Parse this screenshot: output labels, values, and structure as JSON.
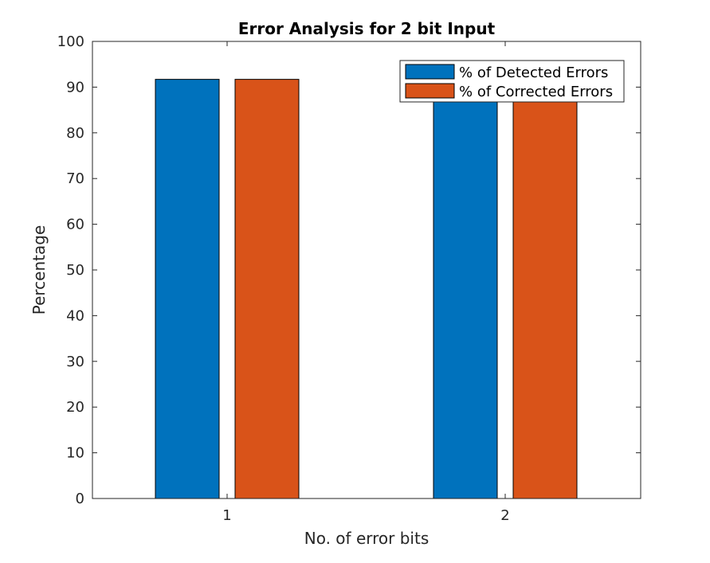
{
  "chart_data": {
    "type": "bar",
    "title": "Error Analysis for 2 bit Input",
    "xlabel": "No. of error bits",
    "ylabel": "Percentage",
    "categories": [
      "1",
      "2"
    ],
    "series": [
      {
        "name": "% of Detected Errors",
        "color": "#0072BD",
        "values": [
          91.7,
          88
        ]
      },
      {
        "name": "% of Corrected Errors",
        "color": "#D95319",
        "values": [
          91.7,
          88
        ]
      }
    ],
    "ylim": [
      0,
      100
    ],
    "yticks": [
      0,
      10,
      20,
      30,
      40,
      50,
      60,
      70,
      80,
      90,
      100
    ],
    "grid": false,
    "legend_position": "top-right"
  }
}
